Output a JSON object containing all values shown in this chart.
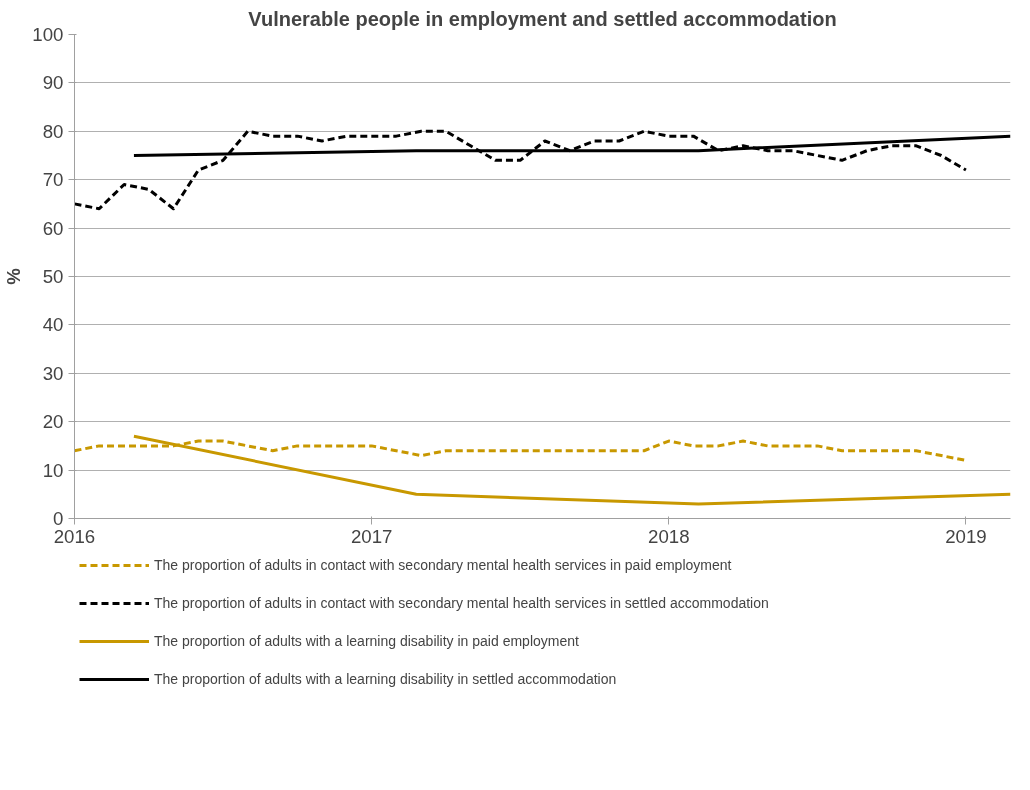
{
  "chart_data": {
    "type": "line",
    "title": "Vulnerable people in employment and settled accommodation",
    "ylabel": "%",
    "xlim": [
      2016,
      2019.15
    ],
    "xticks": [
      2016,
      2017,
      2018,
      2019
    ],
    "ylim": [
      0,
      100
    ],
    "yticks": [
      0,
      10,
      20,
      30,
      40,
      50,
      60,
      70,
      80,
      90,
      100
    ],
    "grid": "y",
    "legend": "bottom",
    "marker": "none",
    "series": [
      {
        "name": "The proportion of adults in contact with secondary mental health services in paid employment",
        "color": "#c89800",
        "line_style": "dashed",
        "x": [
          2016.0,
          2016.083,
          2016.167,
          2016.25,
          2016.333,
          2016.417,
          2016.5,
          2016.583,
          2016.667,
          2016.75,
          2016.833,
          2016.917,
          2017.0,
          2017.083,
          2017.167,
          2017.25,
          2017.333,
          2017.417,
          2017.5,
          2017.583,
          2017.667,
          2017.75,
          2017.833,
          2017.917,
          2018.0,
          2018.083,
          2018.167,
          2018.25,
          2018.333,
          2018.417,
          2018.5,
          2018.583,
          2018.667,
          2018.75,
          2018.833,
          2018.917,
          2019.0
        ],
        "values": [
          14,
          15,
          15,
          15,
          15,
          16,
          16,
          15,
          14,
          15,
          15,
          15,
          15,
          14,
          13,
          14,
          14,
          14,
          14,
          14,
          14,
          14,
          14,
          14,
          16,
          15,
          15,
          16,
          15,
          15,
          15,
          14,
          14,
          14,
          14,
          13,
          12
        ]
      },
      {
        "name": "The proportion of adults in contact with secondary mental health services in settled accommodation",
        "color": "#000000",
        "line_style": "dashed",
        "x": [
          2016.0,
          2016.083,
          2016.167,
          2016.25,
          2016.333,
          2016.417,
          2016.5,
          2016.583,
          2016.667,
          2016.75,
          2016.833,
          2016.917,
          2017.0,
          2017.083,
          2017.167,
          2017.25,
          2017.333,
          2017.417,
          2017.5,
          2017.583,
          2017.667,
          2017.75,
          2017.833,
          2017.917,
          2018.0,
          2018.083,
          2018.167,
          2018.25,
          2018.333,
          2018.417,
          2018.5,
          2018.583,
          2018.667,
          2018.75,
          2018.833,
          2018.917,
          2019.0
        ],
        "values": [
          65,
          64,
          69,
          68,
          64,
          72,
          74,
          80,
          79,
          79,
          78,
          79,
          79,
          79,
          80,
          80,
          77,
          74,
          74,
          78,
          76,
          78,
          78,
          80,
          79,
          79,
          76,
          77,
          76,
          76,
          75,
          74,
          76,
          77,
          77,
          75,
          72
        ]
      },
      {
        "name": "The proportion of adults with a learning disability in paid employment",
        "color": "#c89800",
        "line_style": "solid",
        "x": [
          2016.2,
          2017.15,
          2018.1,
          2019.15
        ],
        "values": [
          17,
          5,
          3,
          5
        ]
      },
      {
        "name": "The proportion of adults with a learning disability in settled accommodation",
        "color": "#000000",
        "line_style": "solid",
        "x": [
          2016.2,
          2017.15,
          2018.1,
          2019.15
        ],
        "values": [
          75,
          76,
          76,
          79
        ]
      }
    ]
  }
}
